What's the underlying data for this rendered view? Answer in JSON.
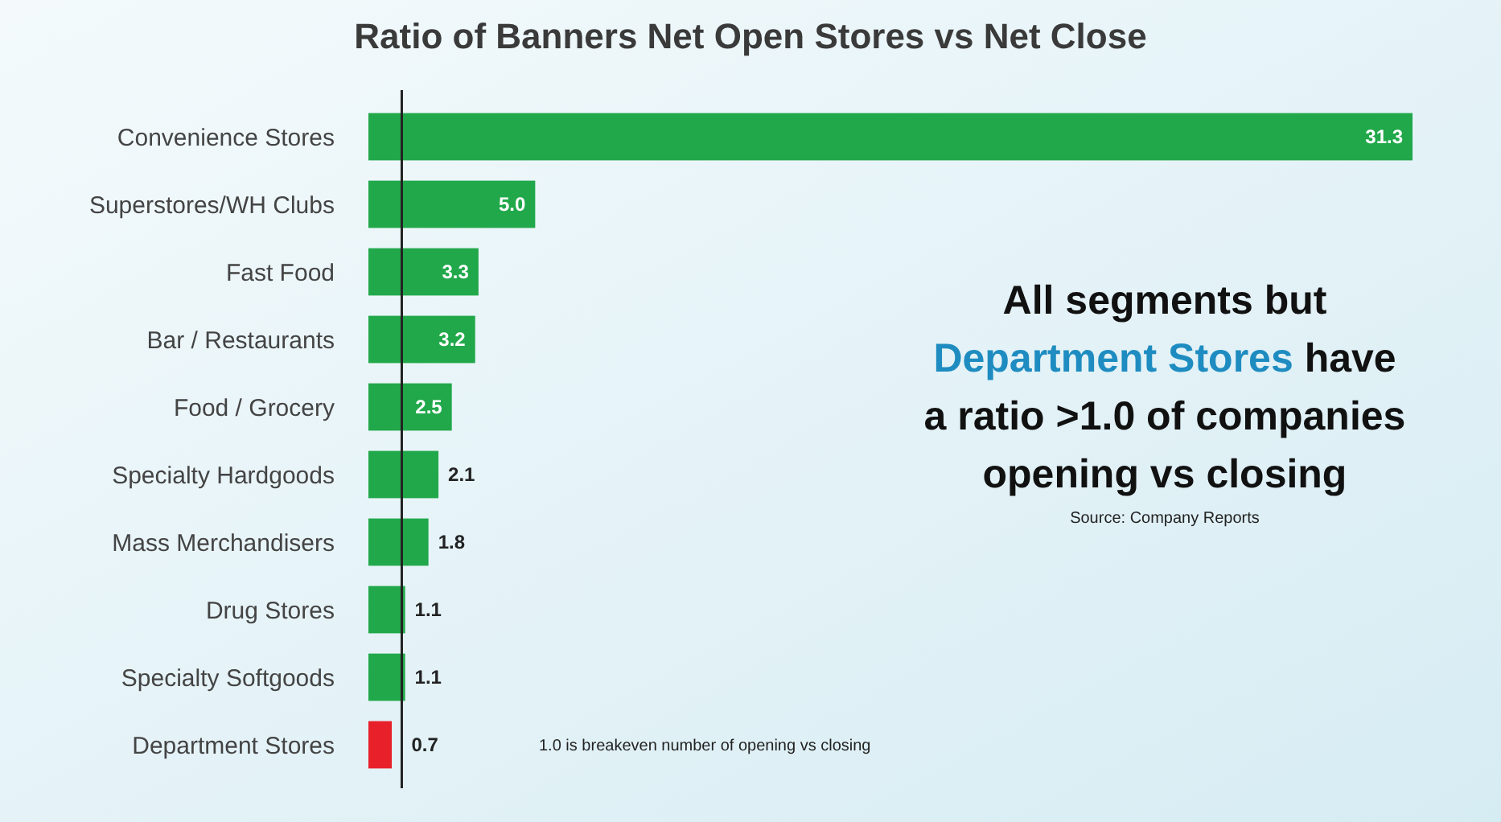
{
  "chart_data": {
    "type": "bar",
    "orientation": "horizontal",
    "title": "Ratio of Banners Net Open Stores vs Net Close",
    "categories": [
      "Convenience Stores",
      "Superstores/WH Clubs",
      "Fast Food",
      "Bar / Restaurants",
      "Food / Grocery",
      "Specialty Hardgoods",
      "Mass Merchandisers",
      "Drug Stores",
      "Specialty Softgoods",
      "Department Stores"
    ],
    "values": [
      31.3,
      5.0,
      3.3,
      3.2,
      2.5,
      2.1,
      1.8,
      1.1,
      1.1,
      0.7
    ],
    "value_labels": [
      "31.3",
      "5.0",
      "3.3",
      "3.2",
      "2.5",
      "2.1",
      "1.8",
      "1.1",
      "1.1",
      "0.7"
    ],
    "colors": [
      "#21a84a",
      "#21a84a",
      "#21a84a",
      "#21a84a",
      "#21a84a",
      "#21a84a",
      "#21a84a",
      "#21a84a",
      "#21a84a",
      "#e8202a"
    ],
    "ref_lines": [
      {
        "axis": "x",
        "value": 1.0,
        "label": "1.0 is breakeven number of opening vs closing",
        "color": "#222222"
      }
    ],
    "annotations": [
      "All segments but Department Stores have a ratio >1.0 of companies opening vs closing",
      "Source: Company Reports"
    ]
  }
}
